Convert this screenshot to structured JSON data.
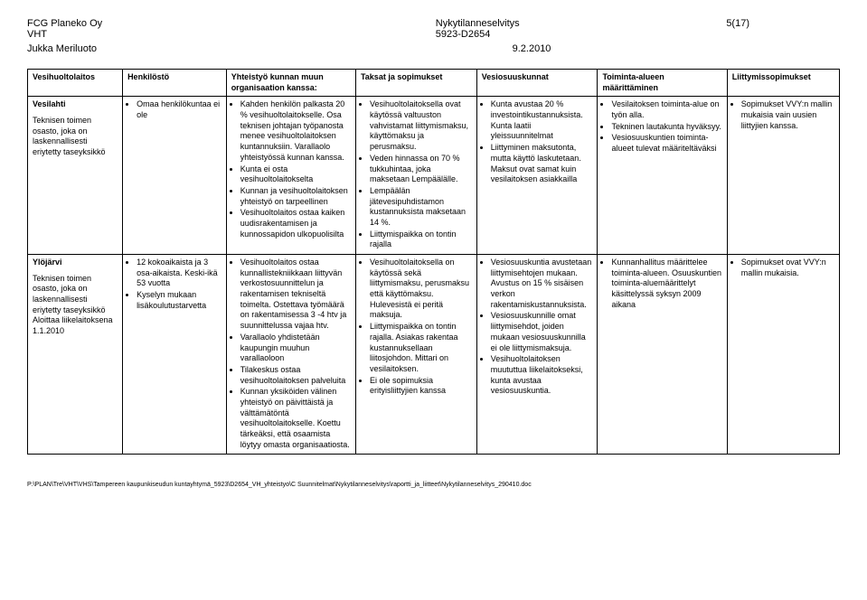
{
  "header": {
    "company": "FCG Planeko Oy",
    "company_sub": "VHT",
    "title": "Nykytilanneselvitys",
    "docnum": "5923-D2654",
    "page": "5(17)",
    "author": "Jukka Meriluoto",
    "date": "9.2.2010"
  },
  "table": {
    "columns": [
      "Vesihuoltolaitos",
      "Henkilöstö",
      "Yhteistyö kunnan muun organisaation kanssa:",
      "Taksat ja sopimukset",
      "Vesiosuuskunnat",
      "Toiminta-alueen määrittäminen",
      "Liittymissopimukset"
    ],
    "rows": [
      {
        "name": "Vesilahti",
        "desc": "Teknisen toimen osasto, joka on laskennallisesti eriytetty taseyksikkö",
        "cells": [
          [
            "Omaa henkilökuntaa ei ole"
          ],
          [
            "Kahden henkilön palkasta 20 % vesihuoltolaitokselle. Osa teknisen johtajan työpanosta menee vesihuoltolaitoksen kuntannuksiin. Varallaolo yhteistyössä kunnan kanssa.",
            "Kunta ei osta vesihuoltolaitokselta",
            "Kunnan ja vesihuoltolaitoksen yhteistyö on tarpeellinen",
            "Vesihuoltolaitos ostaa kaiken uudisrakentamisen ja kunnossapidon ulkopuolisilta"
          ],
          [
            "Vesihuoltolaitoksella ovat käytössä valtuuston vahvistamat liittymismaksu, käyttömaksu ja perusmaksu.",
            "Veden hinnassa on 70 % tukkuhintaa, joka maksetaan Lempäälälle.",
            "Lempäälän jätevesipuhdistamon kustannuksista maksetaan 14 %.",
            "Liittymispaikka on tontin rajalla"
          ],
          [
            "Kunta avustaa 20 % investointikustannuksista. Kunta laatii yleissuunnitelmat",
            "Liittyminen maksutonta, mutta käyttö laskutetaan. Maksut ovat samat kuin vesilaitoksen asiakkailla"
          ],
          [
            "Vesilaitoksen toiminta-alue on työn alla.",
            "Tekninen lautakunta hyväksyy.",
            "Vesiosuuskuntien toiminta-alueet tulevat määriteltäväksi"
          ],
          [
            "Sopimukset VVY:n mallin mukaisia vain uusien liittyjien kanssa."
          ]
        ]
      },
      {
        "name": "Ylöjärvi",
        "desc": "Teknisen toimen osasto, joka on laskennallisesti eriytetty taseyksikkö\n\nAloittaa liikelaitoksena 1.1.2010",
        "cells": [
          [
            "12 kokoaikaista ja 3 osa-aikaista. Keski-ikä 53 vuotta",
            "Kyselyn mukaan lisäkoulutustarvetta"
          ],
          [
            "Vesihuoltolaitos ostaa kunnallistekniikkaan liittyvän verkostosuunnittelun ja rakentamisen tekniseltä toimelta. Ostettava työmäärä on rakentamisessa 3 -4 htv ja suunnittelussa vajaa htv.",
            "Varallaolo yhdistetään kaupungin muuhun varallaoloon",
            "Tilakeskus ostaa vesihuoltolaitoksen palveluita",
            "Kunnan yksiköiden välinen yhteistyö on päivittäistä ja välttämätöntä vesihuoltolaitokselle. Koettu tärkeäksi, että osaamista löytyy omasta organisaatiosta."
          ],
          [
            "Vesihuoltolaitoksella on käytössä sekä liittymismaksu, perusmaksu että käyttömaksu. Hulevesistä ei peritä maksuja.",
            "Liittymispaikka on tontin rajalla. Asiakas rakentaa kustannuksellaan liitosjohdon. Mittari on vesilaitoksen.",
            "Ei ole sopimuksia erityisliittyjien kanssa"
          ],
          [
            "Vesiosuuskuntia avustetaan liittymisehtojen mukaan. Avustus on 15 % sisäisen verkon rakentamiskustannuksista.",
            "Vesiosuuskunnille omat liittymisehdot, joiden mukaan vesiosuuskunnilla ei ole liittymismaksuja.",
            "Vesihuoltolaitoksen muututtua liikelaitokseksi, kunta avustaa vesiosuuskuntia."
          ],
          [
            "Kunnanhallitus määrittelee toiminta-alueen. Osuuskuntien toiminta-aluemäärittelyt käsittelyssä syksyn 2009 aikana"
          ],
          [
            "Sopimukset ovat VVY:n mallin mukaisia."
          ]
        ]
      }
    ]
  },
  "footer": "P:\\PLAN\\Tre\\VHT\\VHS\\Tampereen kaupunkiseudun kuntayhtymä_5923\\D2654_VH_yhteistyo\\C Suunnitelmat\\Nykytilanneselvitys\\raportti_ja_liitteet\\Nykytilanneselvitys_290410.doc"
}
